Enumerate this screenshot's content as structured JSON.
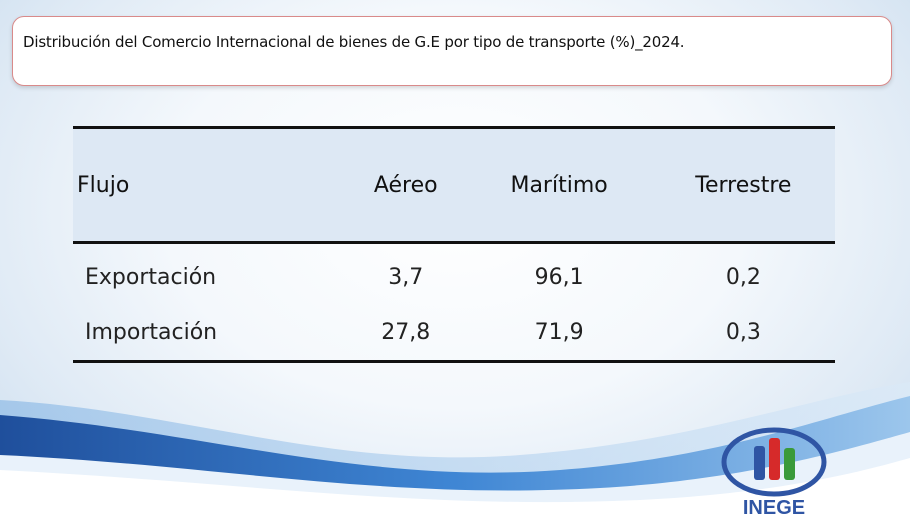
{
  "title": "Distribución del Comercio Internacional de bienes de G.E por tipo de transporte (%)_2024.",
  "table": {
    "headers": [
      "Flujo",
      "Aéreo",
      "Marítimo",
      "Terrestre"
    ],
    "rows": [
      [
        "Exportación",
        "3,7",
        "96,1",
        "0,2"
      ],
      [
        "Importación",
        "27,8",
        "71,9",
        "0,3"
      ]
    ]
  },
  "logo": {
    "text": "INEGE",
    "icon": "inege-logo-icon",
    "colors": [
      "#2f55a4",
      "#d62a2a",
      "#3a9a3a"
    ]
  },
  "colors": {
    "header_bg": "#dde8f4",
    "title_border": "#d98a8a",
    "wave_dark": "#2a67b8"
  }
}
